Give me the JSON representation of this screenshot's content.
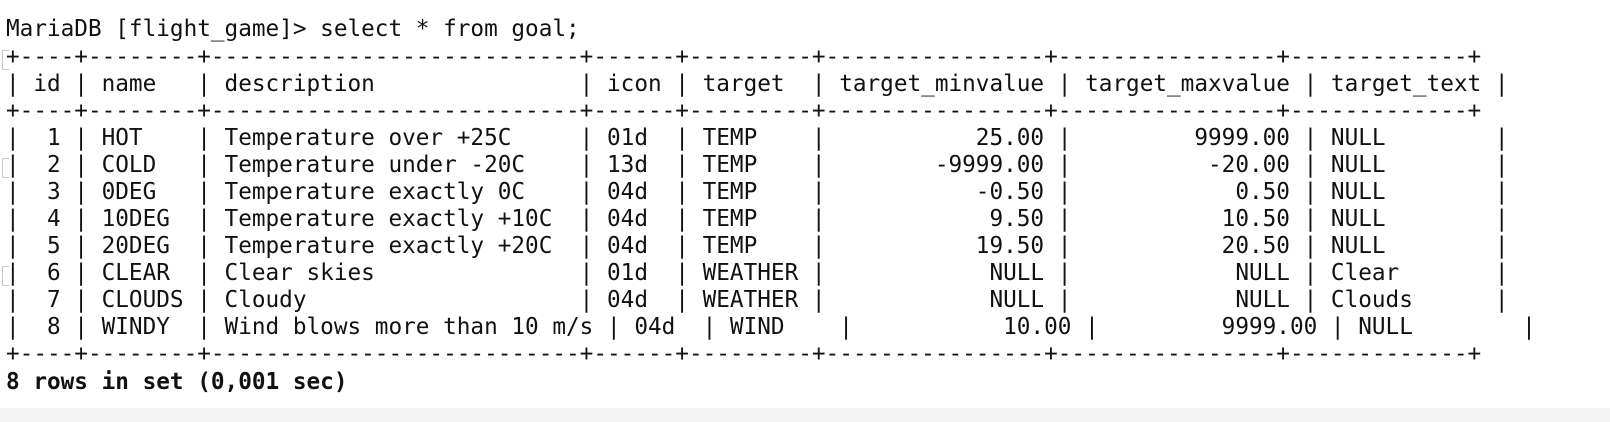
{
  "terminal": {
    "prompt": "MariaDB [flight_game]> select * from goal;",
    "border": "+----+--------+---------------------------+------+---------+----------------+----------------+-------------+",
    "header": "| id | name   | description               | icon | target  | target_minvalue | target_maxvalue | target_text |",
    "rows": [
      "|  1 | HOT    | Temperature over +25C     | 01d  | TEMP    |           25.00 |         9999.00 | NULL        |",
      "|  2 | COLD   | Temperature under -20C    | 13d  | TEMP    |        -9999.00 |          -20.00 | NULL        |",
      "|  3 | 0DEG   | Temperature exactly 0C    | 04d  | TEMP    |           -0.50 |            0.50 | NULL        |",
      "|  4 | 10DEG  | Temperature exactly +10C  | 04d  | TEMP    |            9.50 |           10.50 | NULL        |",
      "|  5 | 20DEG  | Temperature exactly +20C  | 04d  | TEMP    |           19.50 |           20.50 | NULL        |",
      "|  6 | CLEAR  | Clear skies               | 01d  | WEATHER |            NULL |            NULL | Clear       |",
      "|  7 | CLOUDS | Cloudy                    | 04d  | WEATHER |            NULL |            NULL | Clouds      |",
      "|  8 | WINDY  | Wind blows more than 10 m/s | 04d  | WIND    |           10.00 |         9999.00 | NULL        |"
    ],
    "footer": "8 rows in set (0,001 sec)"
  }
}
